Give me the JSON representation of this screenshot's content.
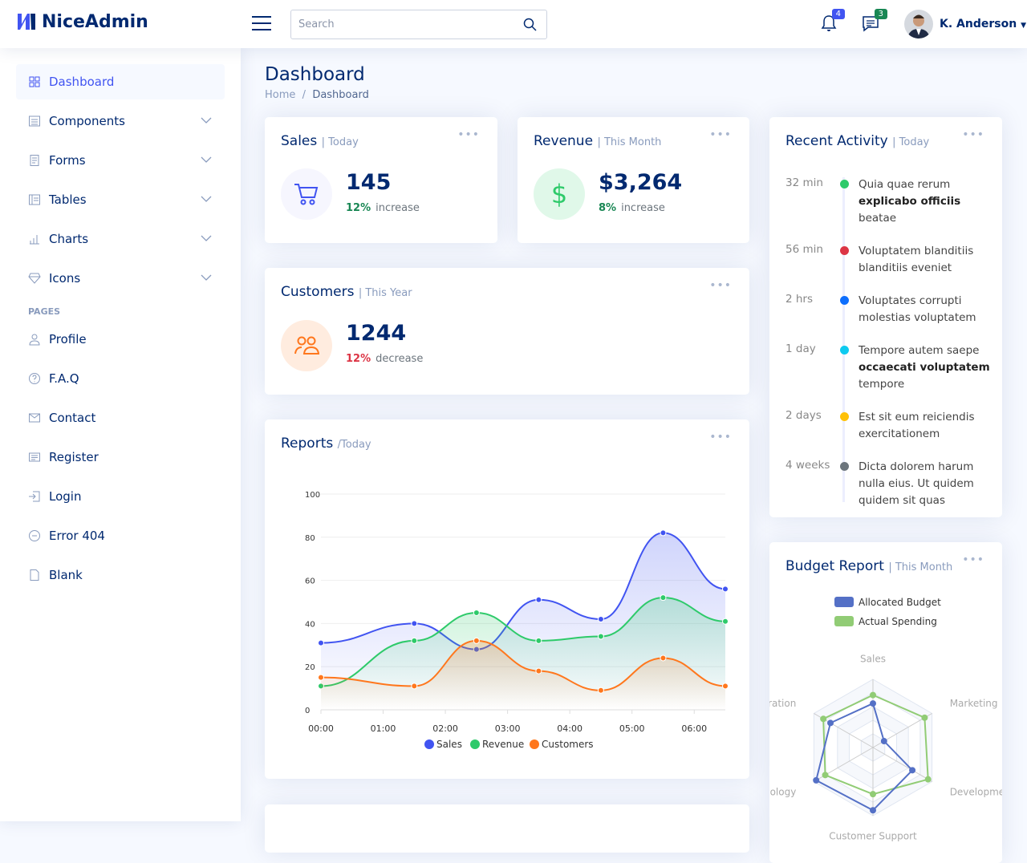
{
  "header": {
    "brand": "NiceAdmin",
    "search_placeholder": "Search",
    "notifications_count": "4",
    "messages_count": "3",
    "user_name": "K. Anderson"
  },
  "sidebar": {
    "items": [
      {
        "label": "Dashboard",
        "icon": "grid-icon",
        "active": true
      },
      {
        "label": "Components",
        "icon": "menu-button-icon",
        "chevron": true
      },
      {
        "label": "Forms",
        "icon": "journal-text-icon",
        "chevron": true
      },
      {
        "label": "Tables",
        "icon": "layout-text-icon",
        "chevron": true
      },
      {
        "label": "Charts",
        "icon": "bar-chart-icon",
        "chevron": true
      },
      {
        "label": "Icons",
        "icon": "gem-icon",
        "chevron": true
      }
    ],
    "section": "PAGES",
    "pages": [
      {
        "label": "Profile",
        "icon": "person-icon"
      },
      {
        "label": "F.A.Q",
        "icon": "question-circle-icon"
      },
      {
        "label": "Contact",
        "icon": "envelope-icon"
      },
      {
        "label": "Register",
        "icon": "card-list-icon"
      },
      {
        "label": "Login",
        "icon": "box-arrow-in-right-icon"
      },
      {
        "label": "Error 404",
        "icon": "dash-circle-icon"
      },
      {
        "label": "Blank",
        "icon": "file-icon"
      }
    ]
  },
  "page": {
    "title": "Dashboard",
    "breadcrumb": [
      "Home",
      "Dashboard"
    ]
  },
  "sales": {
    "title": "Sales",
    "filter": "| Today",
    "value": "145",
    "pct": "12%",
    "trend": "increase"
  },
  "revenue": {
    "title": "Revenue",
    "filter": "| This Month",
    "value": "$3,264",
    "pct": "8%",
    "trend": "increase"
  },
  "customers": {
    "title": "Customers",
    "filter": "| This Year",
    "value": "1244",
    "pct": "12%",
    "trend": "decrease"
  },
  "reports": {
    "title": "Reports",
    "filter": "/Today"
  },
  "activity": {
    "title": "Recent Activity",
    "filter": "| Today",
    "items": [
      {
        "time": "32 min",
        "color": "#2eca6a",
        "parts": [
          [
            "Quia quae rerum ",
            false
          ],
          [
            "explicabo officiis",
            true
          ],
          [
            " beatae",
            false
          ]
        ]
      },
      {
        "time": "56 min",
        "color": "#dc3545",
        "parts": [
          [
            "Voluptatem blanditiis blanditiis eveniet",
            false
          ]
        ]
      },
      {
        "time": "2 hrs",
        "color": "#0d6efd",
        "parts": [
          [
            "Voluptates corrupti molestias voluptatem",
            false
          ]
        ]
      },
      {
        "time": "1 day",
        "color": "#0dcaf0",
        "parts": [
          [
            "Tempore autem saepe ",
            false
          ],
          [
            "occaecati voluptatem",
            true
          ],
          [
            " tempore",
            false
          ]
        ]
      },
      {
        "time": "2 days",
        "color": "#ffc107",
        "parts": [
          [
            "Est sit eum reiciendis exercitationem",
            false
          ]
        ]
      },
      {
        "time": "4 weeks",
        "color": "#6c757d",
        "parts": [
          [
            "Dicta dolorem harum nulla eius. Ut quidem quidem sit quas",
            false
          ]
        ]
      }
    ]
  },
  "budget": {
    "title": "Budget Report",
    "filter": "| This Month"
  },
  "colors": {
    "accent": "#4154f1",
    "navy": "#012970",
    "sales": "#4154f1",
    "revenue": "#2eca6a",
    "customers": "#ff771d"
  },
  "chart_data": [
    {
      "type": "area",
      "x": [
        "00:00",
        "01:30",
        "02:30",
        "03:30",
        "04:30",
        "05:30",
        "06:30"
      ],
      "xticks": [
        "00:00",
        "01:00",
        "02:00",
        "03:00",
        "04:00",
        "05:00",
        "06:00"
      ],
      "yticks": [
        0,
        20,
        40,
        60,
        80,
        100
      ],
      "ylim": [
        0,
        100
      ],
      "grid": true,
      "legend": "bottom",
      "series": [
        {
          "name": "Sales",
          "color": "#4154f1",
          "values": [
            31,
            40,
            28,
            51,
            42,
            82,
            56
          ]
        },
        {
          "name": "Revenue",
          "color": "#2eca6a",
          "values": [
            11,
            32,
            45,
            32,
            34,
            52,
            41
          ]
        },
        {
          "name": "Customers",
          "color": "#ff771d",
          "values": [
            15,
            11,
            32,
            18,
            9,
            24,
            11
          ]
        }
      ]
    },
    {
      "type": "radar",
      "legend": "top",
      "indicators": [
        {
          "name": "Sales",
          "max": 6500
        },
        {
          "name": "Marketing",
          "max": 16000
        },
        {
          "name": "Development",
          "max": 30000
        },
        {
          "name": "Customer Support",
          "max": 38000
        },
        {
          "name": "Information Technology",
          "max": 52000
        },
        {
          "name": "Administration",
          "max": 25000
        }
      ],
      "series": [
        {
          "name": "Allocated Budget",
          "color": "#5470c6",
          "values": [
            4200,
            3000,
            20000,
            35000,
            50000,
            18000
          ]
        },
        {
          "name": "Actual Spending",
          "color": "#91cc75",
          "values": [
            5000,
            14000,
            28000,
            26000,
            42000,
            21000
          ]
        }
      ]
    }
  ]
}
